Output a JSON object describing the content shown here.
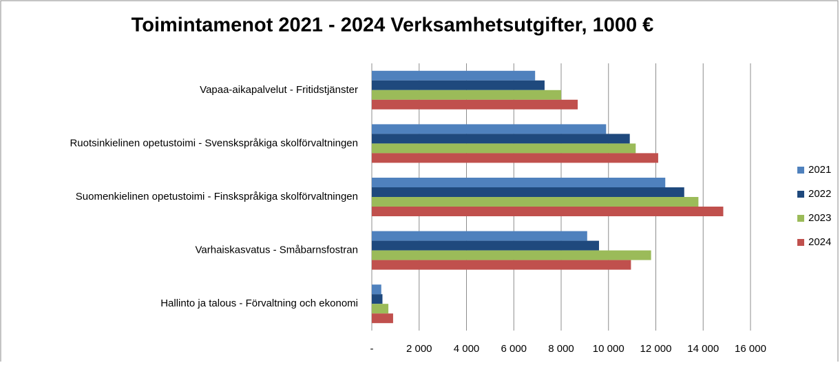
{
  "chart_data": {
    "type": "hbar",
    "title": "Toimintamenot 2021 - 2024 Verksamhetsutgifter, 1000 €",
    "categories": [
      "Vapaa-aikapalvelut - Fritidstjänster",
      "Ruotsinkielinen opetustoimi - Svenskspråkiga skolförvaltningen",
      "Suomenkielinen opetustoimi - Finskspråkiga skolförvaltningen",
      "Varhaiskasvatus - Småbarnsfostran",
      "Hallinto ja talous - Förvaltning och ekonomi"
    ],
    "series": [
      {
        "name": "2021",
        "color": "#4f81bd",
        "values": [
          6900,
          9900,
          12400,
          9100,
          400
        ]
      },
      {
        "name": "2022",
        "color": "#1f497d",
        "values": [
          7300,
          10900,
          13200,
          9600,
          450
        ]
      },
      {
        "name": "2023",
        "color": "#9bbb59",
        "values": [
          8000,
          11150,
          13800,
          11800,
          700
        ]
      },
      {
        "name": "2024",
        "color": "#c0504d",
        "values": [
          8700,
          12100,
          14850,
          10950,
          900
        ]
      }
    ],
    "xlim": [
      0,
      16000
    ],
    "xticks": [
      {
        "value": 0,
        "label": "-"
      },
      {
        "value": 2000,
        "label": "2 000"
      },
      {
        "value": 4000,
        "label": "4 000"
      },
      {
        "value": 6000,
        "label": "6 000"
      },
      {
        "value": 8000,
        "label": "8 000"
      },
      {
        "value": 10000,
        "label": "10 000"
      },
      {
        "value": 12000,
        "label": "12 000"
      },
      {
        "value": 14000,
        "label": "14 000"
      },
      {
        "value": 16000,
        "label": "16 000"
      }
    ],
    "grid": true,
    "legend": "right"
  }
}
